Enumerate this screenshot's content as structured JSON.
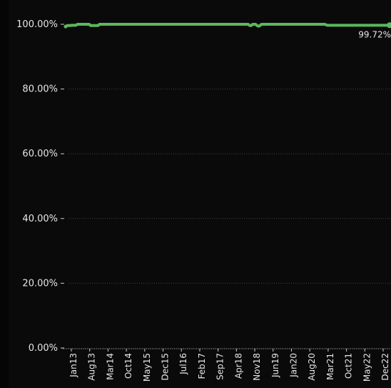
{
  "chart_data": {
    "type": "line",
    "title": "",
    "xlabel": "",
    "ylabel": "",
    "y_tick_labels": [
      "0.00%",
      "20.00%",
      "40.00%",
      "60.00%",
      "80.00%",
      "100.00%"
    ],
    "y_ticks": [
      0,
      20,
      40,
      60,
      80,
      100
    ],
    "ylim": [
      0,
      100
    ],
    "x_tick_labels": [
      "Jan13",
      "Aug13",
      "Mar14",
      "Oct14",
      "May15",
      "Dec15",
      "Jul16",
      "Feb17",
      "Sep17",
      "Apr18",
      "Nov18",
      "Jun19",
      "Jan20",
      "Aug20",
      "Mar21",
      "Oct21",
      "May22",
      "Dec22"
    ],
    "grid": true,
    "grid_style": "dotted",
    "legend": "none",
    "line_color": "#5cb85c",
    "axis_color": "#cccccc",
    "grid_color": "#444444",
    "last_point_label": "99.72%",
    "series": [
      {
        "values": [
          99.3,
          99.6,
          99.6,
          99.6,
          99.7,
          99.7,
          99.7,
          99.7,
          100,
          100,
          100,
          100,
          100,
          100,
          100,
          100,
          100,
          99.6,
          99.6,
          99.6,
          99.6,
          99.6,
          99.6,
          100,
          100,
          100,
          100,
          100,
          100,
          100,
          100,
          100,
          100,
          100,
          100,
          100,
          100,
          100,
          100,
          100,
          100,
          100,
          100,
          100,
          100,
          100,
          100,
          100,
          100,
          100,
          100,
          100,
          100,
          100,
          100,
          100,
          100,
          100,
          100,
          100,
          100,
          100,
          100,
          100,
          100,
          100,
          100,
          100,
          100,
          100,
          100,
          100,
          100,
          100,
          100,
          100,
          100,
          100,
          100,
          100,
          100,
          100,
          100,
          100,
          100,
          100,
          100,
          100,
          100,
          100,
          100,
          100,
          100,
          100,
          100,
          100,
          100,
          100,
          100,
          100,
          100,
          100,
          100,
          100,
          100,
          100,
          100,
          100,
          100,
          100,
          100,
          100,
          100,
          100,
          100,
          100,
          100,
          100,
          100,
          100,
          100,
          100,
          100,
          100,
          100,
          99.6,
          99.6,
          100,
          100,
          100,
          99.6,
          99.4,
          99.6,
          100,
          100,
          100,
          100,
          100,
          100,
          100,
          100,
          100,
          100,
          100,
          100,
          100,
          100,
          100,
          100,
          100,
          100,
          100,
          100,
          100,
          100,
          100,
          100,
          100,
          100,
          100,
          100,
          100,
          100,
          100,
          100,
          100,
          100,
          100,
          100,
          100,
          100,
          100,
          100,
          100,
          100,
          100,
          100,
          99.8,
          99.7,
          99.7,
          99.7,
          99.7,
          99.7,
          99.7,
          99.7,
          99.7,
          99.7,
          99.7,
          99.7,
          99.7,
          99.7,
          99.7,
          99.7,
          99.7,
          99.7,
          99.7,
          99.7,
          99.7,
          99.7,
          99.7,
          99.7,
          99.7,
          99.7,
          99.7,
          99.7,
          99.7,
          99.7,
          99.7,
          99.7,
          99.7,
          99.7,
          99.7,
          99.7,
          99.7,
          99.7,
          99.7,
          99.7,
          99.7,
          99.7,
          99.72
        ]
      }
    ]
  }
}
